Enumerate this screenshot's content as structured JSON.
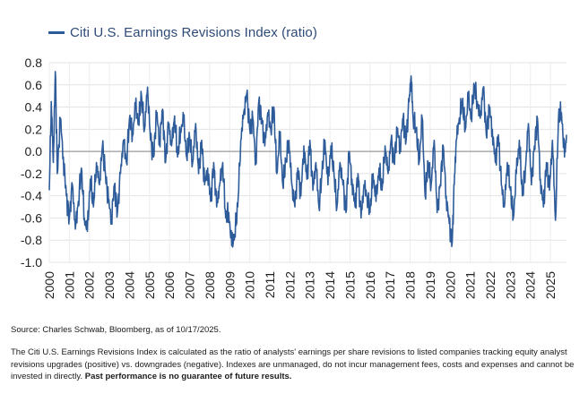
{
  "chart_data": {
    "type": "line",
    "legend": {
      "label": "Citi U.S. Earnings Revisions Index (ratio)",
      "placement": "top-left"
    },
    "ylim": [
      -1.0,
      0.8
    ],
    "yticks": [
      "0.8",
      "0.6",
      "0.4",
      "0.2",
      "0.0",
      "-0.2",
      "-0.4",
      "-0.6",
      "-0.8",
      "-1.0"
    ],
    "xlim": [
      2000.0,
      2025.8
    ],
    "xticks": [
      "2000",
      "2001",
      "2002",
      "2003",
      "2004",
      "2005",
      "2006",
      "2007",
      "2008",
      "2009",
      "2010",
      "2011",
      "2012",
      "2013",
      "2014",
      "2015",
      "2016",
      "2017",
      "2018",
      "2019",
      "2020",
      "2021",
      "2022",
      "2023",
      "2024",
      "2025"
    ],
    "grid": true,
    "zero_line": true,
    "series": [
      {
        "color": "#2e5c9a",
        "x": [
          2000.0,
          2000.1,
          2000.2,
          2000.3,
          2000.4,
          2000.55,
          2000.7,
          2000.85,
          2001.0,
          2001.15,
          2001.3,
          2001.45,
          2001.6,
          2001.75,
          2001.9,
          2002.05,
          2002.2,
          2002.35,
          2002.5,
          2002.65,
          2002.8,
          2002.95,
          2003.1,
          2003.25,
          2003.4,
          2003.55,
          2003.7,
          2003.85,
          2004.0,
          2004.15,
          2004.3,
          2004.45,
          2004.6,
          2004.75,
          2004.9,
          2005.05,
          2005.2,
          2005.35,
          2005.5,
          2005.65,
          2005.8,
          2005.95,
          2006.1,
          2006.25,
          2006.4,
          2006.55,
          2006.7,
          2006.85,
          2007.0,
          2007.15,
          2007.3,
          2007.45,
          2007.6,
          2007.75,
          2007.9,
          2008.05,
          2008.2,
          2008.35,
          2008.5,
          2008.65,
          2008.8,
          2008.95,
          2009.1,
          2009.25,
          2009.4,
          2009.55,
          2009.7,
          2009.85,
          2010.0,
          2010.15,
          2010.3,
          2010.45,
          2010.6,
          2010.75,
          2010.9,
          2011.05,
          2011.2,
          2011.35,
          2011.5,
          2011.65,
          2011.8,
          2011.95,
          2012.1,
          2012.25,
          2012.4,
          2012.55,
          2012.7,
          2012.85,
          2013.0,
          2013.15,
          2013.3,
          2013.45,
          2013.6,
          2013.75,
          2013.9,
          2014.05,
          2014.2,
          2014.35,
          2014.5,
          2014.65,
          2014.8,
          2014.95,
          2015.1,
          2015.25,
          2015.4,
          2015.55,
          2015.7,
          2015.85,
          2016.0,
          2016.15,
          2016.3,
          2016.45,
          2016.6,
          2016.75,
          2016.9,
          2017.05,
          2017.2,
          2017.35,
          2017.5,
          2017.65,
          2017.8,
          2017.95,
          2018.05,
          2018.15,
          2018.3,
          2018.45,
          2018.6,
          2018.75,
          2018.9,
          2019.05,
          2019.2,
          2019.35,
          2019.5,
          2019.65,
          2019.8,
          2019.95,
          2020.1,
          2020.2,
          2020.3,
          2020.45,
          2020.6,
          2020.75,
          2020.9,
          2021.05,
          2021.2,
          2021.35,
          2021.5,
          2021.65,
          2021.8,
          2021.95,
          2022.1,
          2022.25,
          2022.4,
          2022.55,
          2022.7,
          2022.85,
          2023.0,
          2023.15,
          2023.3,
          2023.45,
          2023.6,
          2023.75,
          2023.9,
          2024.05,
          2024.2,
          2024.35,
          2024.5,
          2024.65,
          2024.8,
          2024.95,
          2025.1,
          2025.25,
          2025.4,
          2025.55,
          2025.7,
          2025.8
        ],
        "values": [
          -0.35,
          0.45,
          -0.1,
          0.72,
          -0.2,
          0.3,
          -0.05,
          -0.4,
          -0.6,
          -0.3,
          -0.7,
          -0.45,
          -0.15,
          -0.6,
          -0.72,
          -0.25,
          -0.5,
          -0.1,
          -0.3,
          0.05,
          -0.2,
          -0.45,
          -0.6,
          -0.3,
          -0.55,
          -0.2,
          0.1,
          -0.1,
          0.3,
          0.15,
          0.4,
          0.25,
          0.5,
          0.2,
          0.58,
          0.1,
          -0.05,
          0.35,
          0.1,
          0.38,
          -0.1,
          0.25,
          0.05,
          0.32,
          -0.05,
          0.2,
          0.28,
          -0.05,
          0.12,
          -0.1,
          0.25,
          -0.2,
          0.1,
          -0.3,
          -0.15,
          -0.45,
          -0.1,
          -0.5,
          -0.3,
          -0.1,
          -0.6,
          -0.55,
          -0.85,
          -0.75,
          -0.5,
          0.1,
          0.35,
          0.52,
          0.2,
          0.3,
          -0.1,
          0.45,
          0.3,
          0.05,
          0.35,
          0.2,
          0.4,
          -0.2,
          0.15,
          -0.3,
          -0.1,
          0.1,
          -0.3,
          -0.5,
          -0.15,
          -0.4,
          0.05,
          -0.25,
          0.1,
          -0.35,
          -0.1,
          -0.5,
          -0.2,
          0.1,
          -0.3,
          0.05,
          -0.2,
          -0.5,
          -0.1,
          -0.3,
          -0.55,
          0.0,
          -0.25,
          -0.5,
          -0.2,
          -0.6,
          -0.3,
          -0.4,
          -0.55,
          -0.2,
          -0.45,
          -0.15,
          -0.35,
          0.05,
          -0.2,
          0.1,
          -0.1,
          0.2,
          0.05,
          0.3,
          0.1,
          0.45,
          0.68,
          0.3,
          0.2,
          -0.1,
          0.3,
          -0.4,
          -0.1,
          -0.3,
          0.1,
          -0.55,
          -0.3,
          0.05,
          -0.4,
          -0.65,
          -0.82,
          -0.3,
          0.1,
          0.3,
          0.45,
          0.2,
          0.48,
          0.3,
          0.6,
          0.45,
          0.3,
          0.58,
          0.15,
          0.4,
          0.2,
          -0.1,
          0.15,
          -0.3,
          -0.5,
          -0.1,
          -0.35,
          -0.6,
          -0.2,
          0.1,
          -0.4,
          -0.15,
          0.25,
          -0.3,
          0.05,
          0.3,
          -0.25,
          -0.5,
          -0.1,
          -0.35,
          0.1,
          -0.62,
          0.3,
          0.35,
          -0.05,
          0.15
        ]
      }
    ]
  },
  "notes": {
    "source": "Source: Charles Schwab, Bloomberg, as of 10/17/2025.",
    "description": "The Citi U.S. Earnings Revisions Index is calculated as the ratio of analysts' earnings per share revisions to listed companies tracking equity analyst revisions upgrades (positive) vs. downgrades (negative). Indexes are unmanaged, do not incur management fees, costs and expenses and cannot be invested in directly.",
    "disclaimer": "Past performance is no guarantee of future results."
  }
}
